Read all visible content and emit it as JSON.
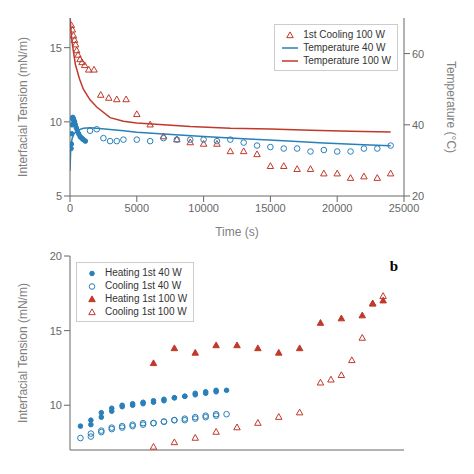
{
  "chart_data": [
    {
      "type": "scatter",
      "xlabel": "Time (s)",
      "ylabel": "Interfacial Tension (mN/m)",
      "y2label": "Temperature (°C)",
      "xlim": [
        0,
        25000
      ],
      "xticks": [
        0,
        5000,
        10000,
        15000,
        20000,
        25000
      ],
      "ylim": [
        5,
        17
      ],
      "yticks": [
        5,
        10,
        15
      ],
      "y2lim": [
        20,
        70
      ],
      "y2ticks": [
        20,
        40,
        60
      ],
      "grid": false,
      "legend": "upper right",
      "series": [
        {
          "name": "1st Cooling 100 W",
          "type": "scatter",
          "color": "#c0392b",
          "marker": "triangle_open",
          "x": [
            100,
            180,
            260,
            340,
            420,
            500,
            600,
            750,
            900,
            1100,
            1400,
            1800,
            2300,
            2900,
            3500,
            4200,
            5000,
            6000,
            7000,
            8000,
            9000,
            10000,
            11000,
            12000,
            13000,
            14000,
            15000,
            16000,
            17000,
            18000,
            19000,
            20000,
            21000,
            22000,
            23000,
            24000
          ],
          "values": [
            16.5,
            16.2,
            15.8,
            15.5,
            15.2,
            14.8,
            14.5,
            14.2,
            14.0,
            13.8,
            13.5,
            13.5,
            11.8,
            11.6,
            11.5,
            11.5,
            10.5,
            9.8,
            9.0,
            8.8,
            8.6,
            8.5,
            8.5,
            8.0,
            8.0,
            7.8,
            7.0,
            7.0,
            6.8,
            6.8,
            6.5,
            6.5,
            6.2,
            6.3,
            6.2,
            6.5
          ]
        },
        {
          "name": "Temperature 40 W",
          "type": "line",
          "axis": "y2",
          "color": "#2980b9",
          "x": [
            0,
            50,
            150,
            300,
            600,
            1000,
            1500,
            2000,
            3000,
            4000,
            5000,
            7000,
            10000,
            13000,
            16000,
            19000,
            22000,
            24000
          ],
          "values": [
            27,
            33,
            36,
            37.5,
            38.5,
            39.0,
            39.2,
            39.0,
            38.7,
            38.3,
            37.9,
            37.4,
            36.7,
            36.1,
            35.5,
            34.9,
            34.4,
            34.1
          ]
        },
        {
          "name": "Temperature 100 W",
          "type": "line",
          "axis": "y2",
          "color": "#c0392b",
          "x": [
            0,
            50,
            100,
            200,
            400,
            700,
            1000,
            1500,
            2000,
            3000,
            4000,
            5000,
            7000,
            9000,
            12000,
            15000,
            18000,
            21000,
            24000
          ],
          "values": [
            70,
            68,
            65,
            62,
            57,
            53,
            50,
            47,
            45,
            42,
            41,
            40.5,
            40,
            39.5,
            39,
            38.8,
            38.5,
            38.2,
            38.0
          ]
        },
        {
          "type": "scatter",
          "color": "#2980b9",
          "marker": "circle",
          "x": [
            80,
            100,
            120,
            150,
            180,
            210,
            250,
            290,
            340,
            400,
            470,
            550,
            650,
            760,
            880,
            1000,
            1150
          ],
          "values": [
            8.2,
            8.5,
            9.2,
            9.8,
            10.2,
            10.3,
            10.2,
            10.1,
            10.0,
            9.8,
            9.6,
            9.4,
            9.2,
            9.0,
            8.9,
            8.8,
            8.7
          ]
        },
        {
          "type": "scatter",
          "color": "#2980b9",
          "marker": "circle_open",
          "x": [
            1500,
            2000,
            2500,
            3000,
            3500,
            4000,
            5000,
            6000,
            7000,
            8000,
            9000,
            10000,
            11000,
            12000,
            13000,
            14000,
            15000,
            16000,
            17000,
            18000,
            19000,
            20000,
            21000,
            22000,
            23000,
            24000
          ],
          "values": [
            9.4,
            9.5,
            8.9,
            8.7,
            8.7,
            8.8,
            8.8,
            8.7,
            8.9,
            8.8,
            8.8,
            8.8,
            8.7,
            8.8,
            8.6,
            8.4,
            8.3,
            8.2,
            8.2,
            8.0,
            8.1,
            8.0,
            8.0,
            8.2,
            8.2,
            8.4
          ]
        }
      ]
    },
    {
      "type": "scatter",
      "ylabel": "Interfacial Tension (mN/m)",
      "xlim": [
        0,
        32
      ],
      "ylim": [
        7,
        20
      ],
      "yticks": [
        10,
        15,
        20
      ],
      "tick_labels": "y",
      "grid": false,
      "legend": "upper left",
      "annotations": [
        "b"
      ],
      "series": [
        {
          "name": "Heating 1st 40 W",
          "type": "scatter",
          "color": "#2980b9",
          "marker": "circle",
          "x": [
            1,
            2,
            2,
            3,
            3,
            4,
            4,
            5,
            5,
            6,
            6,
            7,
            7,
            8,
            8,
            9,
            9,
            10,
            10,
            11,
            11,
            12,
            12,
            13,
            13,
            14,
            14,
            15
          ],
          "values": [
            8.6,
            8.7,
            9.0,
            9.2,
            9.5,
            9.6,
            9.8,
            9.9,
            10.0,
            10.0,
            10.1,
            10.1,
            10.2,
            10.2,
            10.3,
            10.3,
            10.4,
            10.5,
            10.5,
            10.6,
            10.6,
            10.7,
            10.8,
            10.8,
            10.9,
            10.9,
            11.0,
            11.0
          ]
        },
        {
          "name": "Cooling 1st 40 W",
          "type": "scatter",
          "color": "#2980b9",
          "marker": "circle_open",
          "x": [
            1,
            2,
            2,
            3,
            3,
            4,
            4,
            5,
            5,
            6,
            6,
            7,
            7,
            8,
            8,
            9,
            9,
            10,
            10,
            11,
            11,
            12,
            12,
            13,
            13,
            14,
            14,
            15
          ],
          "values": [
            7.8,
            7.9,
            8.1,
            8.2,
            8.3,
            8.4,
            8.5,
            8.5,
            8.6,
            8.6,
            8.7,
            8.7,
            8.8,
            8.8,
            8.8,
            8.9,
            8.9,
            9.0,
            9.0,
            9.0,
            9.1,
            9.1,
            9.2,
            9.2,
            9.3,
            9.3,
            9.4,
            9.4
          ]
        },
        {
          "name": "Heating 1st 100 W",
          "type": "scatter",
          "color": "#c0392b",
          "marker": "triangle",
          "x": [
            8,
            10,
            12,
            14,
            16,
            18,
            20,
            22,
            24,
            26,
            28,
            29,
            30
          ],
          "values": [
            12.8,
            13.8,
            13.5,
            14.0,
            14.0,
            13.8,
            13.5,
            13.8,
            15.5,
            15.8,
            16.0,
            16.8,
            17.0
          ]
        },
        {
          "name": "Cooling 1st 100 W",
          "type": "scatter",
          "color": "#c0392b",
          "marker": "triangle_open",
          "x": [
            8,
            10,
            12,
            14,
            16,
            18,
            20,
            22,
            24,
            25,
            26,
            27,
            28,
            29,
            30
          ],
          "values": [
            7.2,
            7.5,
            7.8,
            8.2,
            8.5,
            8.8,
            9.2,
            9.5,
            11.5,
            11.7,
            12.0,
            13.0,
            14.5,
            16.8,
            17.3
          ]
        }
      ]
    }
  ]
}
